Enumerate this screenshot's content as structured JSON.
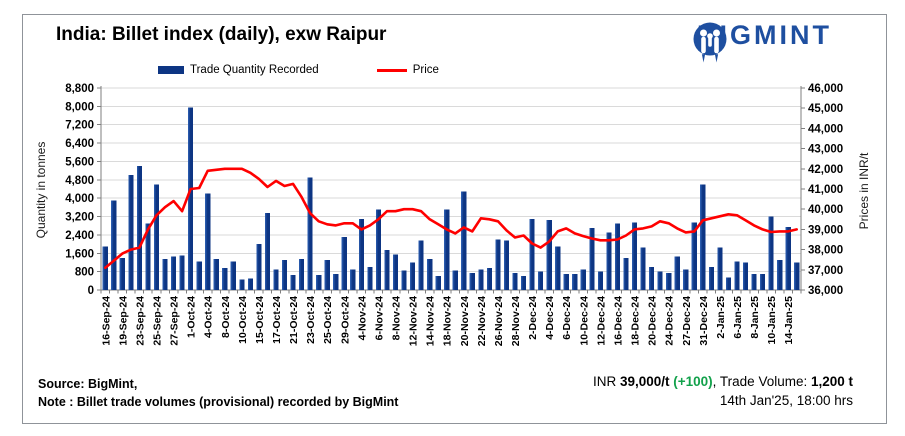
{
  "panel": {
    "title": "India: Billet index (daily), exw Raipur"
  },
  "logo": {
    "wordmark": "BIGMINT"
  },
  "legend": {
    "items": [
      {
        "label": "Trade Quantity Recorded",
        "marker": "bar-swatch",
        "color": "#0d3583"
      },
      {
        "label": "Price",
        "marker": "line-swatch",
        "color": "#ff0000"
      }
    ]
  },
  "axes": {
    "left_title": "Quantity in tonnes",
    "right_title": "Prices in INR/t",
    "left_tick_labels": [
      "0",
      "800",
      "1,600",
      "2,400",
      "3,200",
      "4,000",
      "4,800",
      "5,600",
      "6,400",
      "7,200",
      "8,000",
      "8,800"
    ],
    "right_tick_labels": [
      "36,000",
      "37,000",
      "38,000",
      "39,000",
      "40,000",
      "41,000",
      "42,000",
      "43,000",
      "44,000",
      "45,000",
      "46,000"
    ]
  },
  "source": {
    "line1": "Source: BigMint,",
    "line2": "Note : Billet trade volumes (provisional) recorded by BigMint"
  },
  "annotation": {
    "currency_prefix": "INR ",
    "price": "39,000/t",
    "change": " (+100)",
    "separator": ", ",
    "volume_label": "Trade Volume: ",
    "volume": "1,200 t",
    "datetime": "14th Jan'25, 18:00 hrs"
  },
  "colors": {
    "bar": "#0d3583",
    "bar_light": "#2e61b5",
    "price_line": "#ff0000",
    "logo_blue": "#1e4fa0",
    "change_green": "#12a14b",
    "gridline": "#dadada",
    "spine": "#7f7f7f"
  },
  "chart_data": {
    "type": "bar+line combo",
    "title": "India: Billet index (daily), exw Raipur",
    "xlabel": "",
    "y_left": {
      "label": "Quantity in tonnes",
      "min": 0,
      "max": 8800,
      "step": 800
    },
    "y_right": {
      "label": "Prices in INR/t",
      "min": 36000,
      "max": 46000,
      "step": 1000
    },
    "grid": true,
    "legend_position": "top",
    "categories": [
      "16-Sep-24",
      "",
      "19-Sep-24",
      "",
      "23-Sep-24",
      "",
      "25-Sep-24",
      "",
      "27-Sep-24",
      "",
      "1-Oct-24",
      "",
      "4-Oct-24",
      "",
      "8-Oct-24",
      "",
      "10-Oct-24",
      "",
      "15-Oct-24",
      "",
      "17-Oct-24",
      "",
      "21-Oct-24",
      "",
      "23-Oct-24",
      "",
      "25-Oct-24",
      "",
      "29-Oct-24",
      "",
      "4-Nov-24",
      "",
      "6-Nov-24",
      "",
      "8-Nov-24",
      "",
      "12-Nov-24",
      "",
      "14-Nov-24",
      "",
      "18-Nov-24",
      "",
      "20-Nov-24",
      "",
      "22-Nov-24",
      "",
      "26-Nov-24",
      "",
      "28-Nov-24",
      "",
      "2-Dec-24",
      "",
      "4-Dec-24",
      "",
      "6-Dec-24",
      "",
      "10-Dec-24",
      "",
      "12-Dec-24",
      "",
      "16-Dec-24",
      "",
      "18-Dec-24",
      "",
      "20-Dec-24",
      "",
      "24-Dec-24",
      "",
      "27-Dec-24",
      "",
      "31-Dec-24",
      "",
      "2-Jan-25",
      "",
      "6-Jan-25",
      "",
      "8-Jan-25",
      "",
      "10-Jan-25",
      "",
      "14-Jan-25",
      ""
    ],
    "series": [
      {
        "name": "Trade Quantity Recorded",
        "type": "bar",
        "axis": "left",
        "values": [
          1900,
          3900,
          1400,
          5000,
          5400,
          2900,
          4600,
          1350,
          1450,
          1500,
          7950,
          1250,
          4200,
          1350,
          950,
          1250,
          450,
          500,
          2000,
          3350,
          900,
          1300,
          650,
          1350,
          4900,
          650,
          1300,
          700,
          2300,
          900,
          3100,
          1000,
          3500,
          1750,
          1550,
          850,
          1200,
          2150,
          1350,
          600,
          3500,
          850,
          4300,
          750,
          900,
          950,
          2200,
          2150,
          750,
          600,
          3100,
          800,
          3050,
          1900,
          700,
          700,
          900,
          2700,
          800,
          2500,
          2900,
          1400,
          2950,
          1850,
          1000,
          800,
          750,
          1450,
          900,
          2950,
          4600,
          1000,
          1850,
          550,
          1250,
          1200,
          700,
          700,
          3200,
          1300,
          2750,
          1200
        ]
      },
      {
        "name": "Price",
        "type": "line",
        "axis": "right",
        "values": [
          37100,
          37450,
          37800,
          38000,
          38100,
          39000,
          39700,
          40100,
          40400,
          39900,
          41000,
          41050,
          41900,
          41950,
          42000,
          42000,
          42000,
          41800,
          41500,
          41100,
          41400,
          41150,
          41250,
          40600,
          39800,
          39400,
          39250,
          39200,
          39300,
          39300,
          39000,
          39200,
          39500,
          39900,
          39900,
          40000,
          40000,
          39900,
          39500,
          39250,
          39000,
          38800,
          39100,
          38900,
          39550,
          39500,
          39400,
          38950,
          38600,
          38700,
          38300,
          38100,
          38400,
          38900,
          39050,
          38800,
          38670,
          38550,
          38460,
          38460,
          38500,
          38700,
          39000,
          39050,
          39150,
          39400,
          39300,
          39050,
          38850,
          38900,
          39450,
          39550,
          39650,
          39750,
          39700,
          39450,
          39200,
          39000,
          38870,
          38900,
          38900,
          39000
        ]
      }
    ]
  }
}
